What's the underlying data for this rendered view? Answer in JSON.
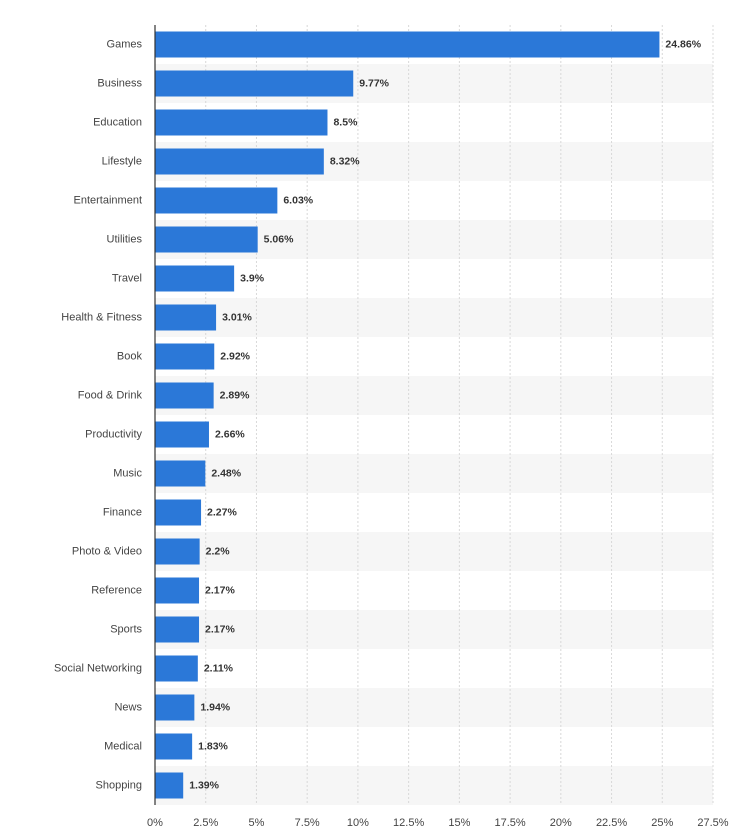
{
  "chart_data": {
    "type": "bar",
    "orientation": "horizontal",
    "color": "#2b78d8",
    "grid": true,
    "categories": [
      "Games",
      "Business",
      "Education",
      "Lifestyle",
      "Entertainment",
      "Utilities",
      "Travel",
      "Health & Fitness",
      "Book",
      "Food & Drink",
      "Productivity",
      "Music",
      "Finance",
      "Photo & Video",
      "Reference",
      "Sports",
      "Social Networking",
      "News",
      "Medical",
      "Shopping"
    ],
    "values": [
      24.86,
      9.77,
      8.5,
      8.32,
      6.03,
      5.06,
      3.9,
      3.01,
      2.92,
      2.89,
      2.66,
      2.48,
      2.27,
      2.2,
      2.17,
      2.17,
      2.11,
      1.94,
      1.83,
      1.39
    ],
    "value_labels": [
      "24.86%",
      "9.77%",
      "8.5%",
      "8.32%",
      "6.03%",
      "5.06%",
      "3.9%",
      "3.01%",
      "2.92%",
      "2.89%",
      "2.66%",
      "2.48%",
      "2.27%",
      "2.2%",
      "2.17%",
      "2.17%",
      "2.11%",
      "1.94%",
      "1.83%",
      "1.39%"
    ],
    "xlim": [
      0,
      27.5
    ],
    "xticks": [
      {
        "value": 0,
        "label": "0%"
      },
      {
        "value": 2.5,
        "label": "2.5%"
      },
      {
        "value": 5,
        "label": "5%"
      },
      {
        "value": 7.5,
        "label": "7.5%"
      },
      {
        "value": 10,
        "label": "10%"
      },
      {
        "value": 12.5,
        "label": "12.5%"
      },
      {
        "value": 15,
        "label": "15%"
      },
      {
        "value": 17.5,
        "label": "17.5%"
      },
      {
        "value": 20,
        "label": "20%"
      },
      {
        "value": 22.5,
        "label": "22.5%"
      },
      {
        "value": 25,
        "label": "25%"
      },
      {
        "value": 27.5,
        "label": "27.5%"
      }
    ]
  }
}
